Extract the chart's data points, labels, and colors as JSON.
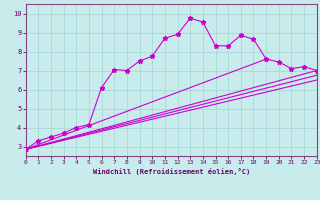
{
  "xlabel": "Windchill (Refroidissement éolien,°C)",
  "xlim": [
    0,
    23
  ],
  "ylim": [
    2.5,
    10.5
  ],
  "bg_color": "#c8ecec",
  "grid_color": "#a8d8d8",
  "line_color": "#cc00cc",
  "xticks": [
    0,
    1,
    2,
    3,
    4,
    5,
    6,
    7,
    8,
    9,
    10,
    11,
    12,
    13,
    14,
    15,
    16,
    17,
    18,
    19,
    20,
    21,
    22,
    23
  ],
  "yticks": [
    3,
    4,
    5,
    6,
    7,
    8,
    9,
    10
  ],
  "jagged_x": [
    0,
    1,
    2,
    3,
    4,
    5,
    6,
    7,
    8,
    9,
    10,
    11,
    12,
    13,
    14,
    15,
    16,
    17,
    18,
    19,
    20,
    21,
    22,
    23
  ],
  "jagged_y": [
    2.85,
    3.3,
    3.5,
    3.7,
    4.0,
    4.15,
    6.1,
    7.05,
    7.0,
    7.5,
    7.75,
    8.7,
    8.9,
    9.75,
    9.55,
    8.3,
    8.3,
    8.85,
    8.65,
    7.6,
    7.45,
    7.1,
    7.2,
    7.0
  ],
  "straight_lines": [
    {
      "x": [
        0,
        23
      ],
      "y": [
        2.85,
        7.0
      ]
    },
    {
      "x": [
        0,
        23
      ],
      "y": [
        2.85,
        6.75
      ]
    },
    {
      "x": [
        0,
        23
      ],
      "y": [
        2.85,
        6.5
      ]
    },
    {
      "x": [
        0,
        19
      ],
      "y": [
        2.85,
        7.6
      ]
    }
  ]
}
